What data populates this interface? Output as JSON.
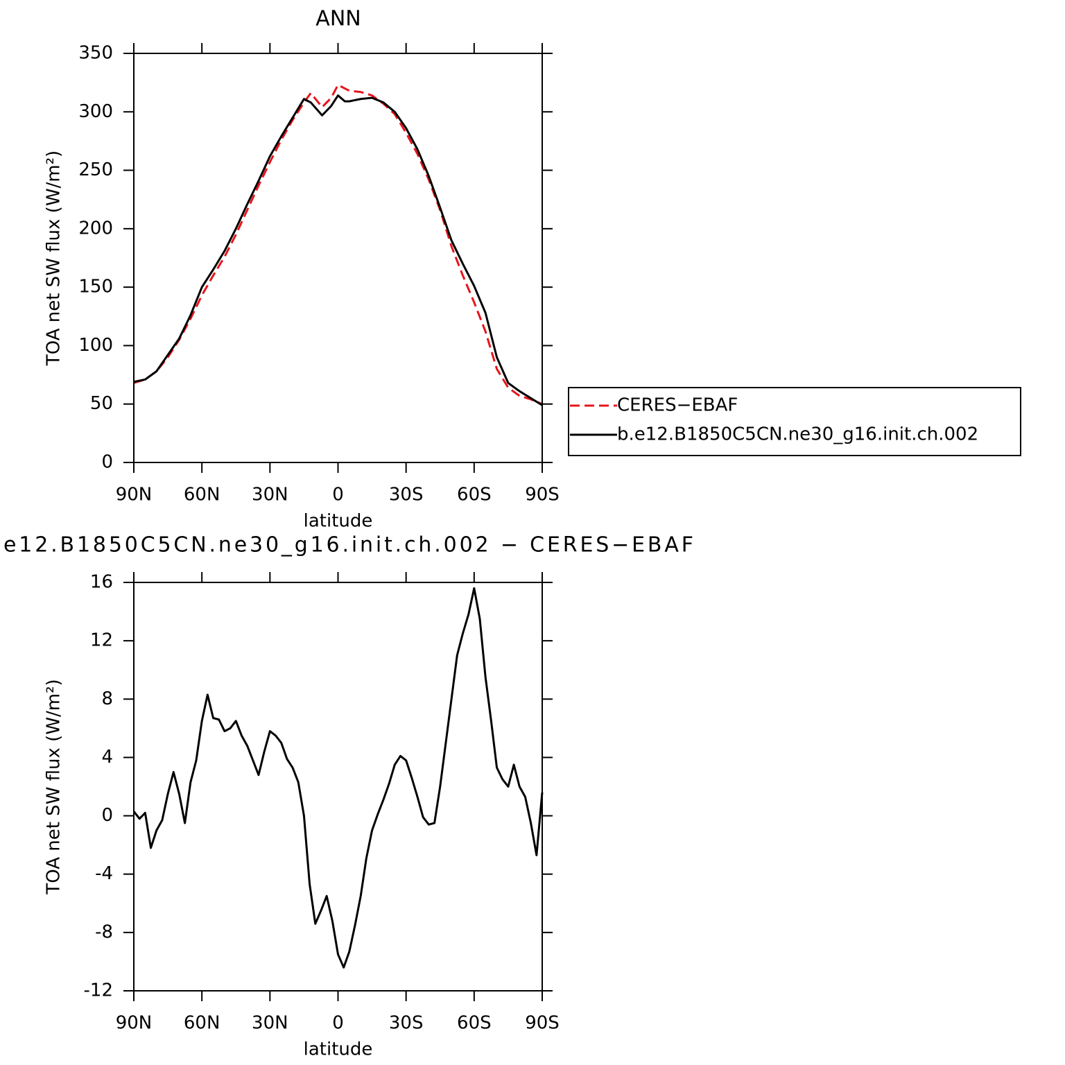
{
  "chart_data": [
    {
      "type": "line",
      "title": "ANN",
      "xlabel": "latitude",
      "ylabel": "TOA net SW flux (W/m²)",
      "x": [
        90,
        85,
        80,
        75,
        70,
        65,
        60,
        55,
        50,
        45,
        40,
        35,
        30,
        25,
        20,
        15,
        12,
        7,
        3,
        0,
        -3,
        -5,
        -10,
        -15,
        -20,
        -25,
        -30,
        -35,
        -40,
        -45,
        -50,
        -55,
        -60,
        -65,
        -70,
        -75,
        -80,
        -85,
        -90
      ],
      "series": [
        {
          "name": "CERES−EBAF",
          "color": "#e8141b",
          "style": "dashed",
          "values": [
            68,
            71,
            78,
            90,
            105,
            123,
            143,
            160,
            176,
            195,
            216,
            237,
            257,
            276,
            293,
            308,
            316,
            304,
            312,
            323,
            320,
            318,
            317,
            314,
            307,
            298,
            282,
            264,
            242,
            216,
            185,
            160,
            137,
            112,
            80,
            64,
            57,
            54,
            50
          ]
        },
        {
          "name": "b.e12.B1850C5CN.ne30_g16.init.ch.002",
          "color": "#000000",
          "style": "solid",
          "values": [
            69,
            71,
            78,
            92,
            106,
            126,
            150,
            165,
            181,
            200,
            221,
            241,
            262,
            279,
            295,
            311,
            308,
            297,
            305,
            314,
            309,
            309,
            311,
            312,
            308,
            300,
            286,
            268,
            245,
            218,
            190,
            170,
            151,
            128,
            90,
            68,
            61,
            55,
            49
          ]
        }
      ],
      "xlim": [
        90,
        -90
      ],
      "xticks": [
        {
          "value": 90,
          "label": "90N"
        },
        {
          "value": 60,
          "label": "60N"
        },
        {
          "value": 30,
          "label": "30N"
        },
        0,
        {
          "value": -30,
          "label": "30S"
        },
        {
          "value": -60,
          "label": "60S"
        },
        {
          "value": -90,
          "label": "90S"
        }
      ],
      "ylim": [
        0,
        350
      ],
      "yticks": [
        0,
        50,
        100,
        150,
        200,
        250,
        300,
        350
      ],
      "grid": false,
      "legend": "right"
    },
    {
      "type": "line",
      "title": "e12.B1850C5CN.ne30_g16.init.ch.002 − CERES−EBAF",
      "xlabel": "latitude",
      "ylabel": "TOA net SW flux (W/m²)",
      "x": [
        90,
        87.5,
        85,
        82.5,
        80,
        77.5,
        75,
        72.5,
        70,
        67.5,
        65,
        62.5,
        60,
        57.5,
        55,
        52.5,
        50,
        47.5,
        45,
        42.5,
        40,
        37.5,
        35,
        32.5,
        30,
        27.5,
        25,
        22.5,
        20,
        17.5,
        15,
        12.5,
        10,
        7.5,
        5,
        2.5,
        0,
        -2.5,
        -5,
        -7.5,
        -10,
        -12.5,
        -15,
        -17.5,
        -20,
        -22.5,
        -25,
        -27.5,
        -30,
        -32.5,
        -35,
        -37.5,
        -40,
        -42.5,
        -45,
        -47.5,
        -50,
        -52.5,
        -55,
        -57.5,
        -60,
        -62.5,
        -65,
        -67.5,
        -70,
        -72.5,
        -75,
        -77.5,
        -80,
        -82.5,
        -85,
        -87.5,
        -90
      ],
      "series": [
        {
          "color": "#000000",
          "style": "solid",
          "values": [
            0.3,
            -0.2,
            0.2,
            -2.2,
            -1.0,
            -0.3,
            1.5,
            3.0,
            1.5,
            -0.5,
            2.3,
            3.8,
            6.5,
            8.3,
            6.7,
            6.6,
            5.8,
            6.0,
            6.5,
            5.5,
            4.8,
            3.8,
            2.8,
            4.4,
            5.8,
            5.5,
            5.0,
            3.9,
            3.3,
            2.3,
            0.0,
            -4.7,
            -7.4,
            -6.5,
            -5.5,
            -7.2,
            -9.5,
            -10.4,
            -9.3,
            -7.5,
            -5.5,
            -2.9,
            -1.0,
            0.1,
            1.1,
            2.2,
            3.5,
            4.1,
            3.8,
            2.6,
            1.3,
            -0.1,
            -0.6,
            -0.5,
            2.0,
            5.0,
            8.0,
            11.0,
            12.5,
            13.8,
            15.6,
            13.5,
            9.5,
            6.5,
            3.3,
            2.5,
            2.0,
            3.5,
            2.0,
            1.3,
            -0.5,
            -2.7,
            1.6
          ]
        }
      ],
      "xlim": [
        90,
        -90
      ],
      "xticks": [
        {
          "value": 90,
          "label": "90N"
        },
        {
          "value": 60,
          "label": "60N"
        },
        {
          "value": 30,
          "label": "30N"
        },
        0,
        {
          "value": -30,
          "label": "30S"
        },
        {
          "value": -60,
          "label": "60S"
        },
        {
          "value": -90,
          "label": "90S"
        }
      ],
      "ylim": [
        -12,
        16
      ],
      "yticks": [
        -12,
        -8,
        -4,
        0,
        4,
        8,
        12,
        16
      ],
      "grid": false
    }
  ]
}
